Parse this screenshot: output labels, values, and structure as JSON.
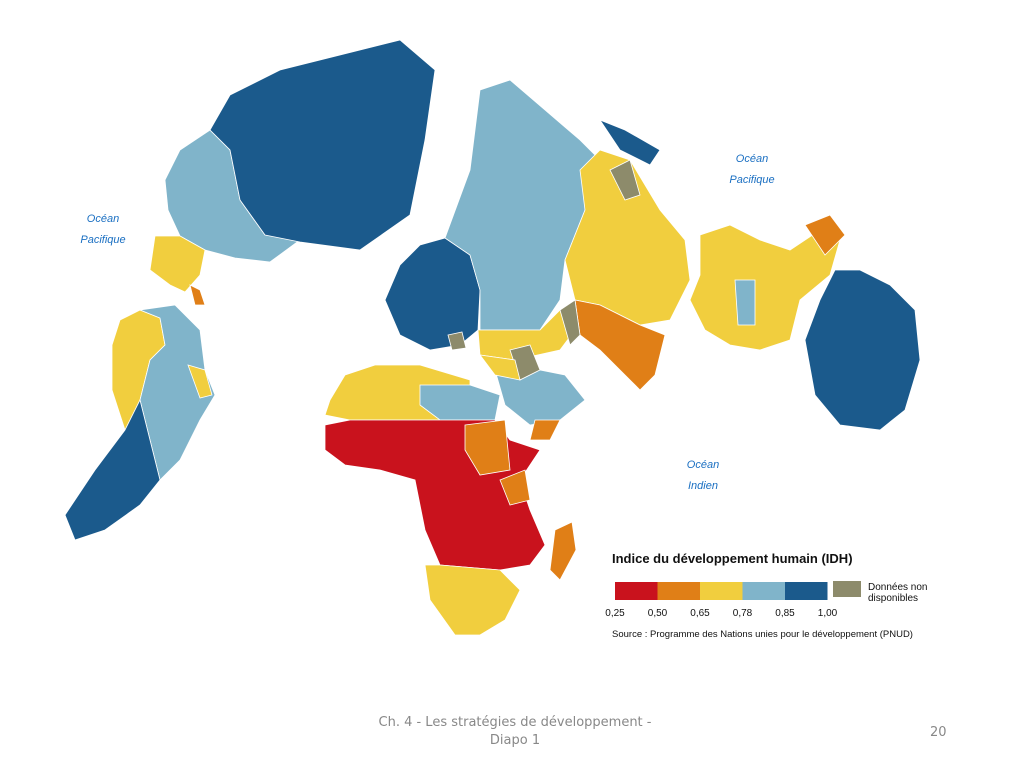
{
  "map": {
    "ocean_labels": [
      [
        "Océan",
        "Pacifique"
      ],
      [
        "Océan",
        "Pacifique"
      ],
      [
        "Océan",
        "Indien"
      ]
    ],
    "legend": {
      "title": "Indice du développement humain (IDH)",
      "colors": [
        "#c9121d",
        "#e07f17",
        "#f1ce3e",
        "#80b4ca",
        "#1b5a8c"
      ],
      "breaks": [
        "0,25",
        "0,50",
        "0,65",
        "0,78",
        "0,85",
        "1,00"
      ],
      "no_data": [
        "Données non",
        "disponibles"
      ],
      "no_data_color": "#8d8b6b"
    },
    "source": "Source : Programme des Nations unies pour le développement (PNUD)"
  },
  "footer": {
    "text": "Ch. 4 - Les stratégies de développement - Diapo 1",
    "page": "20"
  }
}
